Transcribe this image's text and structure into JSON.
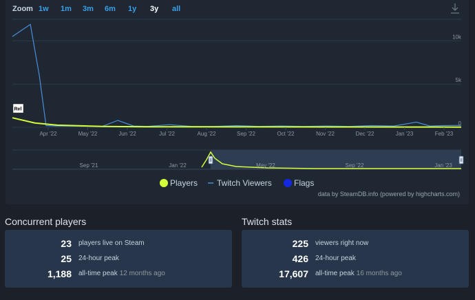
{
  "zoom": {
    "label": "Zoom",
    "options": [
      "1w",
      "1m",
      "3m",
      "6m",
      "1y",
      "3y",
      "all"
    ],
    "selected": "3y"
  },
  "download_icon": "download-icon",
  "chart_data": {
    "type": "line",
    "x_ticks": [
      "Apr '22",
      "May '22",
      "Jun '22",
      "Jul '22",
      "Aug '22",
      "Sep '22",
      "Oct '22",
      "Nov '22",
      "Dec '22",
      "Jan '23",
      "Feb '23"
    ],
    "y_ticks": [
      "10k",
      "5k",
      "0"
    ],
    "ylim": [
      0,
      12500
    ],
    "grid": true,
    "flag": "Rel",
    "series": [
      {
        "name": "Players",
        "color": "#d4ff3a",
        "x": [
          0,
          0.05,
          0.08,
          0.1,
          0.2,
          0.3,
          0.5,
          0.7,
          0.9,
          1
        ],
        "values": [
          1100,
          500,
          350,
          250,
          100,
          60,
          50,
          40,
          30,
          25
        ]
      },
      {
        "name": "Twitch Viewers",
        "color": "#4a8fd8",
        "x": [
          0,
          0.02,
          0.04,
          0.06,
          0.075,
          0.1,
          0.2,
          0.235,
          0.27,
          0.3,
          0.35,
          0.4,
          0.45,
          0.5,
          0.55,
          0.6,
          0.65,
          0.7,
          0.75,
          0.8,
          0.85,
          0.9,
          0.93,
          0.96,
          1
        ],
        "values": [
          10500,
          11200,
          11900,
          6000,
          200,
          150,
          100,
          800,
          150,
          100,
          300,
          100,
          100,
          200,
          100,
          150,
          100,
          150,
          100,
          200,
          150,
          600,
          150,
          200,
          225
        ]
      }
    ],
    "navigator": {
      "x_ticks": [
        "Sep '21",
        "Jan '22",
        "May '22",
        "Sep '22",
        "Jan '23"
      ]
    },
    "legend": {
      "placement": "bottom-center",
      "items": [
        "Players",
        "Twitch Viewers",
        "Flags"
      ]
    },
    "credit": "data by SteamDB.info (powered by highcharts.com)"
  },
  "concurrent": {
    "title": "Concurrent players",
    "rows": [
      {
        "num": "23",
        "label": "players live on Steam",
        "sub": ""
      },
      {
        "num": "25",
        "label": "24-hour peak",
        "sub": ""
      },
      {
        "num": "1,188",
        "label": "all-time peak",
        "sub": "12 months ago"
      }
    ]
  },
  "twitch": {
    "title": "Twitch stats",
    "rows": [
      {
        "num": "225",
        "label": "viewers right now",
        "sub": ""
      },
      {
        "num": "426",
        "label": "24-hour peak",
        "sub": ""
      },
      {
        "num": "17,607",
        "label": "all-time peak",
        "sub": "16 months ago"
      }
    ]
  }
}
